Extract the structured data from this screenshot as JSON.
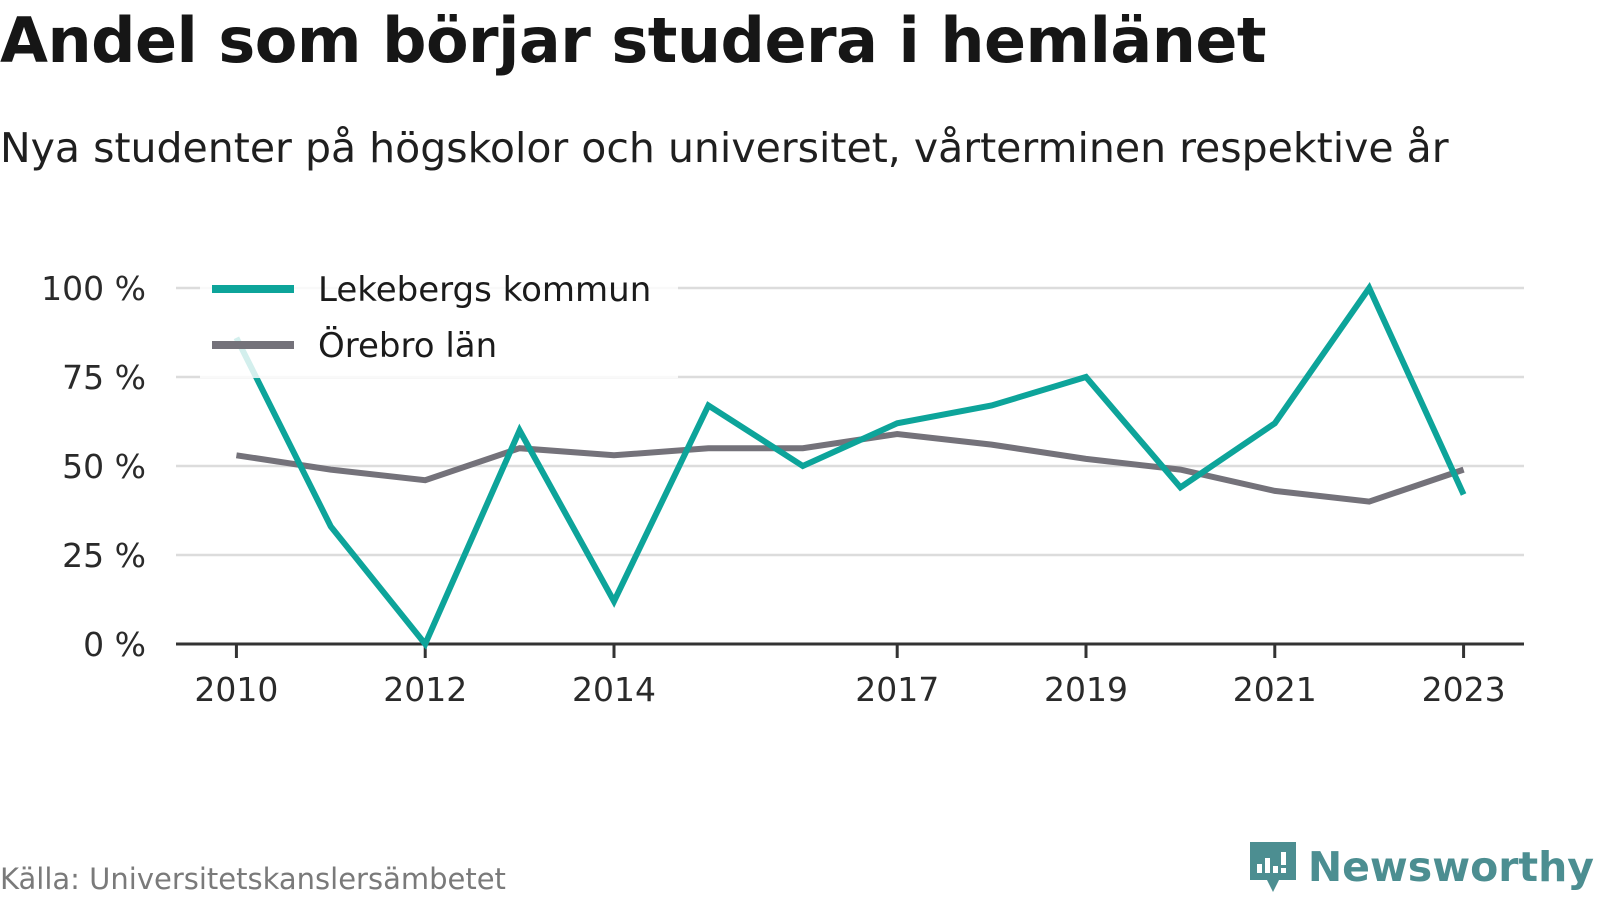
{
  "chart_data": {
    "type": "line",
    "title": "Andel som börjar studera i hemlänet",
    "subtitle": "Nya studenter på högskolor och universitet, vårterminen respektive år",
    "x": [
      2010,
      2011,
      2012,
      2013,
      2014,
      2015,
      2016,
      2017,
      2018,
      2019,
      2020,
      2021,
      2022,
      2023
    ],
    "x_tick_labels": [
      "2010",
      "2012",
      "2014",
      "2017",
      "2019",
      "2021",
      "2023"
    ],
    "x_tick_values": [
      2010,
      2012,
      2014,
      2017,
      2019,
      2021,
      2023
    ],
    "y_ticks": [
      0,
      25,
      50,
      75,
      100
    ],
    "y_tick_labels": [
      "0 %",
      "25 %",
      "50 %",
      "75 %",
      "100 %"
    ],
    "ylim": [
      0,
      100
    ],
    "xlim": [
      2009.36,
      2023.64
    ],
    "grid": true,
    "legend_position": "top-left",
    "series": [
      {
        "name": "Lekebergs kommun",
        "color": "#0da49a",
        "values": [
          86,
          33,
          0,
          60,
          12,
          67,
          50,
          62,
          67,
          75,
          44,
          62,
          100,
          42
        ]
      },
      {
        "name": "Örebro län",
        "color": "#74727a",
        "values": [
          53,
          49,
          46,
          55,
          53,
          55,
          55,
          59,
          56,
          52,
          49,
          43,
          40,
          49
        ]
      }
    ]
  },
  "source": "Källa: Universitetskanslersämbetet",
  "brand": {
    "name": "Newsworthy",
    "icon": "newsworthy-logo-icon",
    "color": "#4c8e91"
  }
}
